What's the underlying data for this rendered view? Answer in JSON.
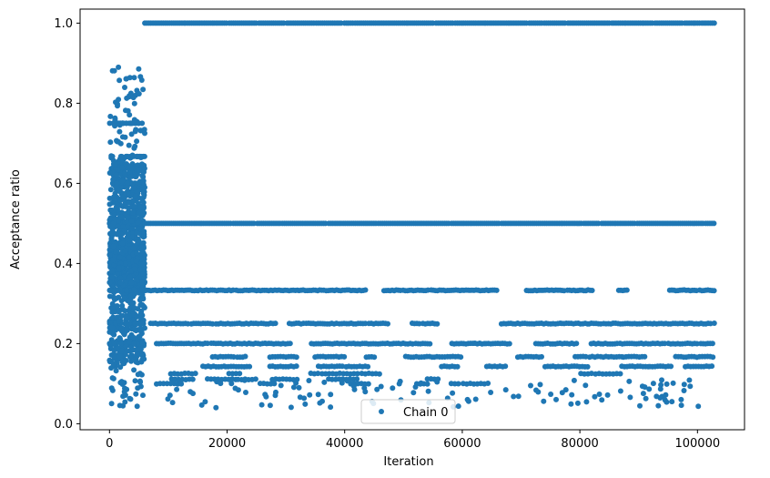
{
  "chart_data": {
    "type": "scatter",
    "title": "",
    "xlabel": "Iteration",
    "ylabel": "Acceptance ratio",
    "xlim": [
      -5000,
      108000
    ],
    "ylim": [
      -0.015,
      1.035
    ],
    "xticks": [
      0,
      20000,
      40000,
      60000,
      80000,
      100000
    ],
    "xtick_labels": [
      "0",
      "20000",
      "40000",
      "60000",
      "80000",
      "100000"
    ],
    "yticks": [
      0.0,
      0.2,
      0.4,
      0.6,
      0.8,
      1.0
    ],
    "ytick_labels": [
      "0.0",
      "0.2",
      "0.4",
      "0.6",
      "0.8",
      "1.0"
    ],
    "grid": false,
    "legend_position": "bottom-center",
    "series": [
      {
        "name": "Chain 0",
        "color": "#1f77b4",
        "marker": "circle",
        "burn_in": {
          "x_range": [
            0,
            6000
          ],
          "y_range": [
            0.04,
            0.89
          ],
          "description": "dense cloud of continuous acceptance ratios during first ~6000 iterations"
        },
        "levels": [
          {
            "y": 1.0,
            "x_range": [
              6000,
              103000
            ],
            "coverage": "continuous"
          },
          {
            "y": 0.5,
            "x_range": [
              6000,
              103000
            ],
            "coverage": "continuous"
          },
          {
            "y": 0.333,
            "x_range": [
              6000,
              103000
            ],
            "coverage": "nearly continuous"
          },
          {
            "y": 0.25,
            "x_range": [
              7000,
              103000
            ],
            "coverage": "segmented"
          },
          {
            "y": 0.2,
            "x_range": [
              8000,
              103000
            ],
            "coverage": "segmented"
          },
          {
            "y": 0.167,
            "x_range": [
              8000,
              103000
            ],
            "coverage": "sparse segments"
          },
          {
            "y": 0.143,
            "x_range": [
              8000,
              103000
            ],
            "coverage": "sparse segments"
          },
          {
            "y": 0.125,
            "x_range": [
              8000,
              100000
            ],
            "coverage": "sparse"
          },
          {
            "y": 0.111,
            "x_range": [
              8000,
              100000
            ],
            "coverage": "sparse"
          },
          {
            "y": 0.1,
            "x_range": [
              8000,
              100000
            ],
            "coverage": "sparse"
          }
        ]
      }
    ]
  }
}
